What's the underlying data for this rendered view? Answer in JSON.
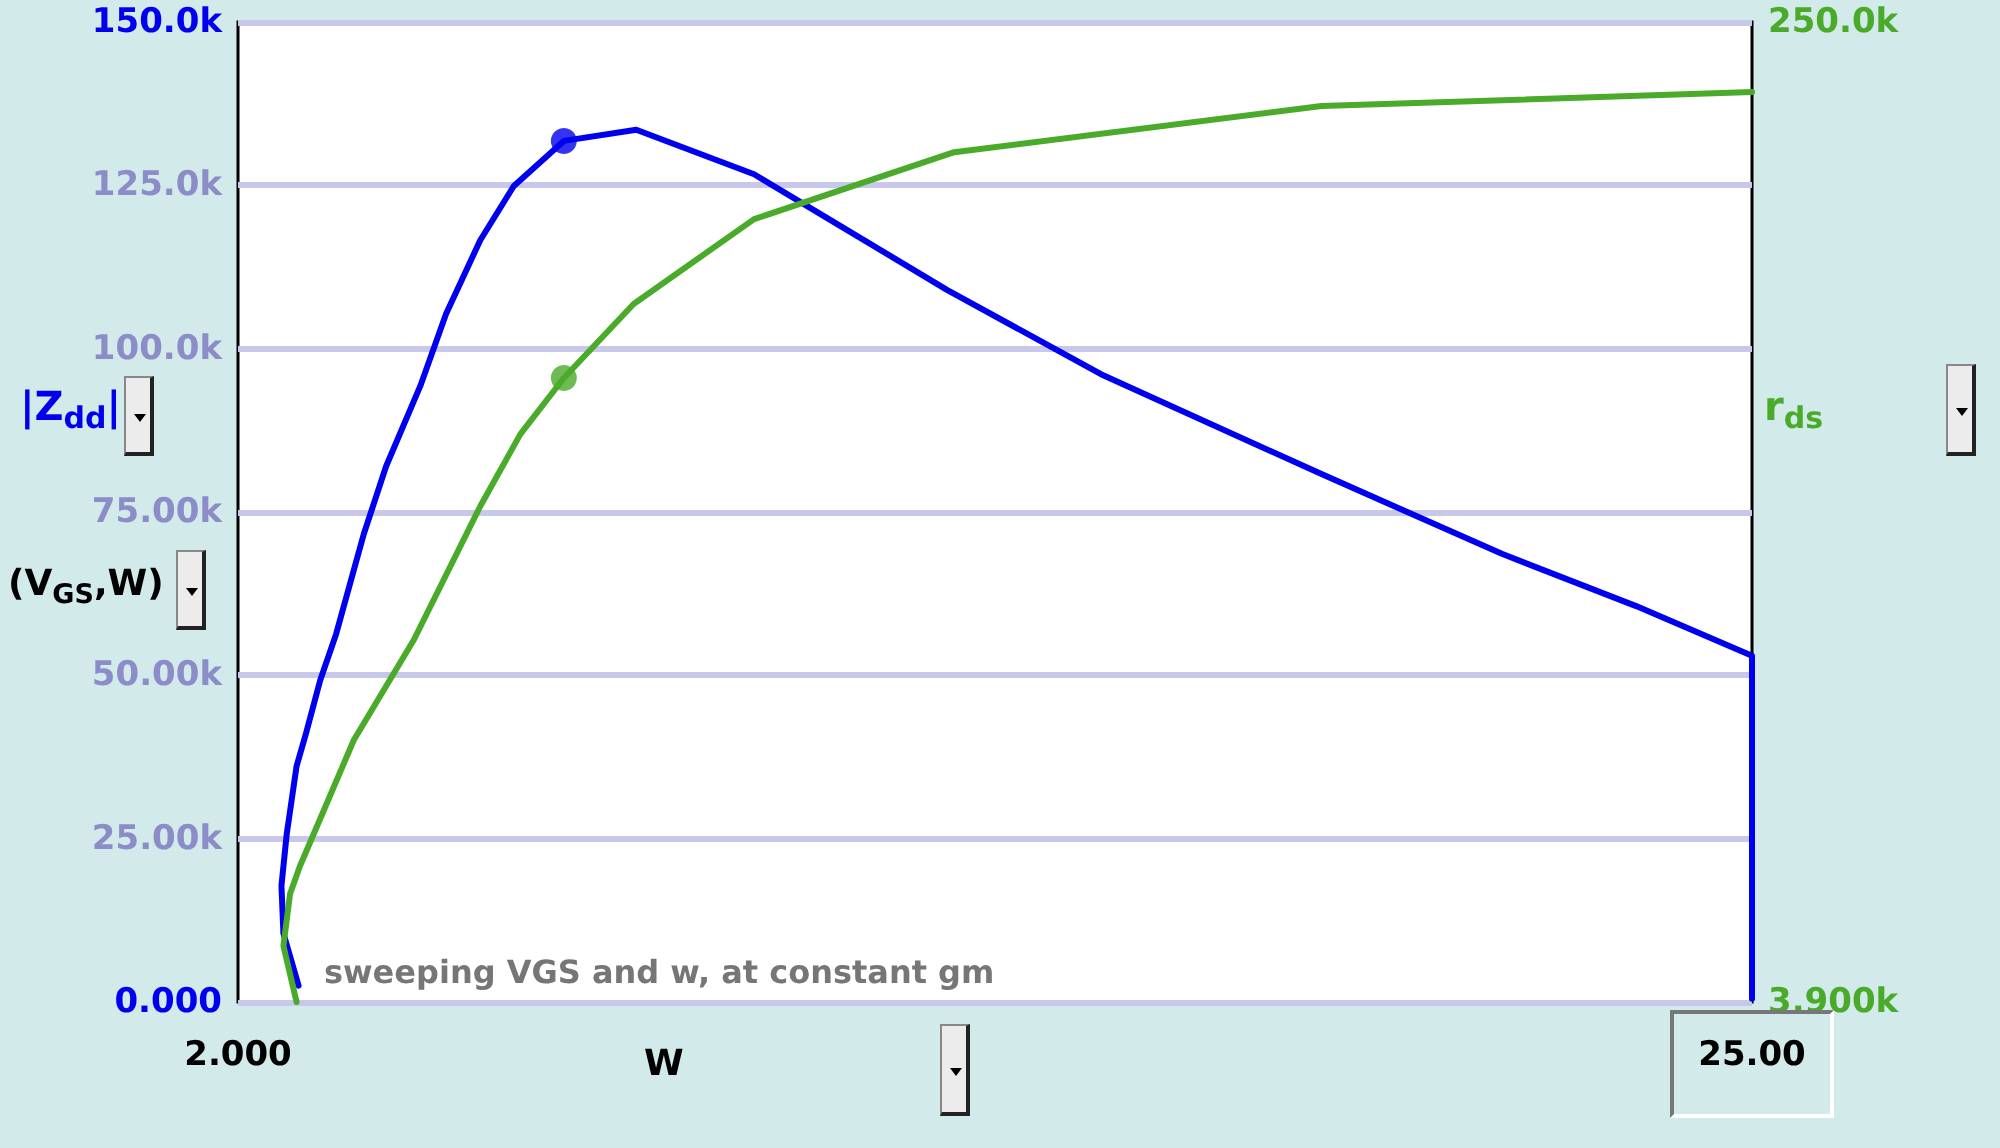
{
  "chart_data": {
    "type": "line",
    "xlabel": "W",
    "ylabel": "|Z$_{dd}$|",
    "y2label": "r$_{ds}$",
    "annotations": [
      "(V$_{GS}$,W)",
      "sweeping VGS and w, at constant gm"
    ],
    "xlim": [
      2,
      25
    ],
    "xticks": [
      {
        "value": 2,
        "label": "2.000"
      },
      {
        "value": 25,
        "label": "25.00"
      }
    ],
    "ylim": [
      0,
      150
    ],
    "yticks": [
      {
        "value": 0,
        "label": "0.000"
      },
      {
        "value": 25,
        "label": "25.00k"
      },
      {
        "value": 50,
        "label": "50.00k"
      },
      {
        "value": 75,
        "label": "75.00k"
      },
      {
        "value": 100,
        "label": "100.0k"
      },
      {
        "value": 125,
        "label": "125.0k"
      },
      {
        "value": 150,
        "label": "150.0k"
      }
    ],
    "y2lim": [
      3.9,
      250
    ],
    "y2ticks": [
      {
        "value": 3.9,
        "label": "3.900k"
      },
      {
        "value": 250,
        "label": "250.0k"
      }
    ],
    "grid": "y",
    "marker": "none",
    "line_style": "solid",
    "series": [
      {
        "color": "#0000ee",
        "x": [
          2.92,
          2.69,
          2.66,
          2.74,
          2.89,
          3.03,
          3.25,
          3.49,
          3.91,
          4.25,
          4.77,
          5.16,
          5.68,
          6.19,
          6.95,
          8.05,
          9.84,
          10.85,
          12.77,
          15.11,
          18.46,
          21.2,
          23.24,
          25,
          25
        ],
        "values": [
          2.5,
          10.5,
          17.8,
          25.7,
          36.1,
          41,
          49.3,
          56.3,
          71.6,
          82,
          94.3,
          105.3,
          116.6,
          124.9,
          131.8,
          133.5,
          126.7,
          120.6,
          109,
          96.1,
          80.8,
          68.6,
          60.6,
          53,
          0.5
        ]
      },
      {
        "color": "#4aaa2a",
        "axis": "y2",
        "x": [
          2.89,
          2.69,
          2.79,
          2.94,
          3.15,
          3.76,
          4.67,
          5.68,
          6.29,
          6.95,
          8.01,
          9.84,
          12.88,
          18.46,
          25
        ],
        "values": [
          3.9,
          18,
          31,
          38,
          46.1,
          69.7,
          94.8,
          128.4,
          146.5,
          160.6,
          179.2,
          200.5,
          217.3,
          228.9,
          232.4
        ]
      },
      {
        "type": "scatter",
        "marker": "circle",
        "color": "#0000ee",
        "x": [
          6.95
        ],
        "values": [
          131.8
        ]
      },
      {
        "type": "scatter",
        "marker": "circle",
        "color": "#4aaa2a",
        "axis": "y2",
        "x": [
          6.95
        ],
        "values": [
          160.6
        ]
      }
    ]
  }
}
